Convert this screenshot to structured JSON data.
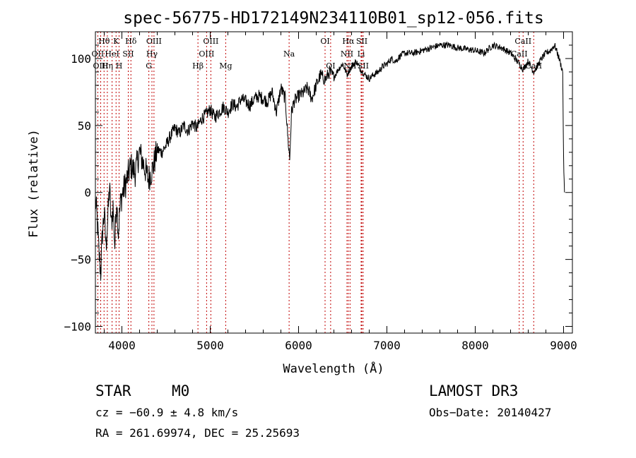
{
  "chart_data": {
    "type": "line",
    "title": "spec-56775-HD172149N234110B01_sp12-056.fits",
    "xlabel": "Wavelength (Å)",
    "ylabel": "Flux (relative)",
    "xlim": [
      3700,
      9100
    ],
    "ylim": [
      -105,
      120
    ],
    "x_ticks": [
      4000,
      5000,
      6000,
      7000,
      8000,
      9000
    ],
    "y_ticks": [
      -100,
      -50,
      0,
      50,
      100
    ],
    "grid": false,
    "series": [
      {
        "x": [
          3700,
          3720,
          3740,
          3760,
          3780,
          3800,
          3820,
          3840,
          3860,
          3880,
          3900,
          3920,
          3940,
          3960,
          3980,
          4000,
          4050,
          4100,
          4150,
          4200,
          4250,
          4300,
          4350,
          4400,
          4450,
          4500,
          4550,
          4600,
          4650,
          4700,
          4750,
          4800,
          4850,
          4900,
          4950,
          5000,
          5050,
          5100,
          5150,
          5200,
          5250,
          5300,
          5350,
          5400,
          5450,
          5500,
          5550,
          5600,
          5650,
          5700,
          5750,
          5800,
          5850,
          5880,
          5900,
          5920,
          5950,
          6000,
          6050,
          6100,
          6150,
          6200,
          6250,
          6300,
          6350,
          6400,
          6450,
          6500,
          6550,
          6563,
          6600,
          6650,
          6700,
          6750,
          6800,
          6850,
          6900,
          6950,
          7000,
          7050,
          7100,
          7150,
          7200,
          7300,
          7400,
          7500,
          7600,
          7700,
          7800,
          7900,
          8000,
          8100,
          8200,
          8300,
          8400,
          8450,
          8500,
          8542,
          8600,
          8662,
          8700,
          8750,
          8800,
          8850,
          8900,
          8950,
          8990,
          9000,
          9010
        ],
        "values": [
          -5,
          -20,
          -45,
          -60,
          -30,
          -15,
          -40,
          -20,
          5,
          -25,
          -10,
          -40,
          -5,
          -30,
          -10,
          -2,
          8,
          20,
          15,
          30,
          20,
          10,
          18,
          32,
          30,
          35,
          42,
          48,
          44,
          50,
          46,
          52,
          48,
          55,
          58,
          62,
          56,
          60,
          64,
          60,
          66,
          64,
          70,
          68,
          65,
          70,
          72,
          70,
          68,
          75,
          60,
          78,
          70,
          40,
          25,
          60,
          68,
          72,
          74,
          78,
          70,
          80,
          88,
          84,
          90,
          86,
          92,
          96,
          88,
          90,
          94,
          98,
          92,
          88,
          85,
          88,
          90,
          94,
          96,
          100,
          98,
          102,
          104,
          104,
          106,
          108,
          110,
          110,
          108,
          107,
          106,
          104,
          110,
          108,
          104,
          100,
          96,
          92,
          98,
          90,
          94,
          100,
          104,
          106,
          110,
          100,
          90,
          25,
          0
        ]
      }
    ],
    "lines": [
      {
        "label": "Hθ",
        "x": 3798,
        "row": 0
      },
      {
        "label": "OII",
        "x": 3727,
        "row": 1
      },
      {
        "label": "OIII",
        "x": 3760,
        "row": 2
      },
      {
        "label": "K",
        "x": 3934,
        "row": 0
      },
      {
        "label": "HeI",
        "x": 3889,
        "row": 1
      },
      {
        "label": "Hη",
        "x": 3835,
        "row": 2
      },
      {
        "label": "Hδ",
        "x": 4102,
        "row": 0
      },
      {
        "label": "SII",
        "x": 4072,
        "row": 1
      },
      {
        "label": "H",
        "x": 3968,
        "row": 2
      },
      {
        "label": "OIII",
        "x": 4363,
        "row": 0
      },
      {
        "label": "Hγ",
        "x": 4340,
        "row": 1
      },
      {
        "label": "G",
        "x": 4305,
        "row": 2
      },
      {
        "label": "OIII",
        "x": 5007,
        "row": 0
      },
      {
        "label": "OIII",
        "x": 4959,
        "row": 1
      },
      {
        "label": "Hβ",
        "x": 4861,
        "row": 2
      },
      {
        "label": "Mg",
        "x": 5175,
        "row": 2
      },
      {
        "label": "Na",
        "x": 5893,
        "row": 1
      },
      {
        "label": "OI",
        "x": 6300,
        "row": 0
      },
      {
        "label": "OI",
        "x": 6363,
        "row": 2
      },
      {
        "label": "Hα",
        "x": 6563,
        "row": 0
      },
      {
        "label": "SII",
        "x": 6716,
        "row": 0
      },
      {
        "label": "NII",
        "x": 6548,
        "row": 1
      },
      {
        "label": "Li",
        "x": 6708,
        "row": 1
      },
      {
        "label": "NII",
        "x": 6583,
        "row": 2
      },
      {
        "label": "SII",
        "x": 6731,
        "row": 2
      },
      {
        "label": "CaII",
        "x": 8542,
        "row": 0
      },
      {
        "label": "CaII",
        "x": 8498,
        "row": 1
      },
      {
        "label": "CaII",
        "x": 8662,
        "row": 2
      }
    ]
  },
  "info": {
    "object_type": "STAR",
    "subclass": "M0",
    "survey": "LAMOST DR3",
    "cz": "cz = −60.9 ± 4.8 km/s",
    "obs_date": "Obs−Date: 20140427",
    "coords": "RA = 261.69974, DEC =  25.25693"
  }
}
